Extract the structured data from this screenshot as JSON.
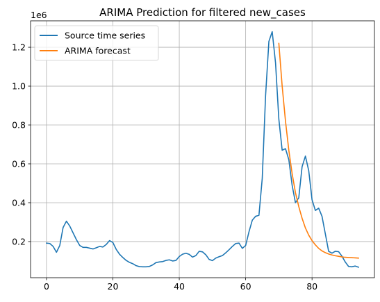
{
  "chart_data": {
    "type": "line",
    "title": "ARIMA Prediction for filtered new_cases",
    "xlabel": "",
    "ylabel": "",
    "offset_text": "1e6",
    "xlim": [
      -4.8,
      98.8
    ],
    "ylim": [
      14000,
      1336000
    ],
    "xticks": [
      0,
      20,
      40,
      60,
      80
    ],
    "yticks": [
      200000,
      400000,
      600000,
      800000,
      1000000,
      1200000
    ],
    "ytick_labels": [
      "0.2",
      "0.4",
      "0.6",
      "0.8",
      "1.0",
      "1.2"
    ],
    "grid": true,
    "legend_position": "upper left",
    "series": [
      {
        "name": "Source time series",
        "color": "#1f77b4",
        "x": [
          0,
          1,
          2,
          3,
          4,
          5,
          6,
          7,
          8,
          9,
          10,
          11,
          12,
          13,
          14,
          15,
          16,
          17,
          18,
          19,
          20,
          21,
          22,
          23,
          24,
          25,
          26,
          27,
          28,
          29,
          30,
          31,
          32,
          33,
          34,
          35,
          36,
          37,
          38,
          39,
          40,
          41,
          42,
          43,
          44,
          45,
          46,
          47,
          48,
          49,
          50,
          51,
          52,
          53,
          54,
          55,
          56,
          57,
          58,
          59,
          60,
          61,
          62,
          63,
          64,
          65,
          66,
          67,
          68,
          69,
          70,
          71,
          72,
          73,
          74,
          75,
          76,
          77,
          78,
          79,
          80,
          81,
          82,
          83,
          84,
          85,
          86,
          87,
          88,
          89,
          90,
          91,
          92,
          93,
          94
        ],
        "y": [
          192000,
          190000,
          175000,
          145000,
          180000,
          272000,
          305000,
          280000,
          245000,
          210000,
          180000,
          170000,
          170000,
          166000,
          162000,
          168000,
          175000,
          172000,
          185000,
          205000,
          195000,
          160000,
          135000,
          118000,
          103000,
          93000,
          86000,
          76000,
          71000,
          70000,
          70000,
          72000,
          80000,
          92000,
          95000,
          97000,
          103000,
          106000,
          100000,
          103000,
          123000,
          135000,
          140000,
          134000,
          120000,
          128000,
          150000,
          147000,
          132000,
          108000,
          102000,
          115000,
          122000,
          128000,
          142000,
          158000,
          175000,
          190000,
          192000,
          165000,
          180000,
          250000,
          310000,
          330000,
          335000,
          525000,
          950000,
          1230000,
          1280000,
          1120000,
          830000,
          670000,
          678000,
          622000,
          490000,
          400000,
          425000,
          585000,
          640000,
          565000,
          415000,
          360000,
          372000,
          330000,
          240000,
          150000,
          140000,
          150000,
          148000,
          125000,
          95000,
          72000,
          70000,
          74000,
          68000
        ]
      },
      {
        "name": "ARIMA forecast",
        "color": "#ff7f0e",
        "x": [
          70,
          71,
          72,
          73,
          74,
          75,
          76,
          77,
          78,
          79,
          80,
          81,
          82,
          83,
          84,
          85,
          86,
          87,
          88,
          89,
          90,
          91,
          92,
          93,
          94
        ],
        "y": [
          1220000,
          1000000,
          820000,
          670000,
          550000,
          452000,
          380000,
          320000,
          270000,
          233000,
          205000,
          183000,
          165000,
          152000,
          143000,
          136000,
          131000,
          127000,
          124000,
          121000,
          119000,
          118000,
          117000,
          116000,
          115000
        ]
      }
    ]
  }
}
